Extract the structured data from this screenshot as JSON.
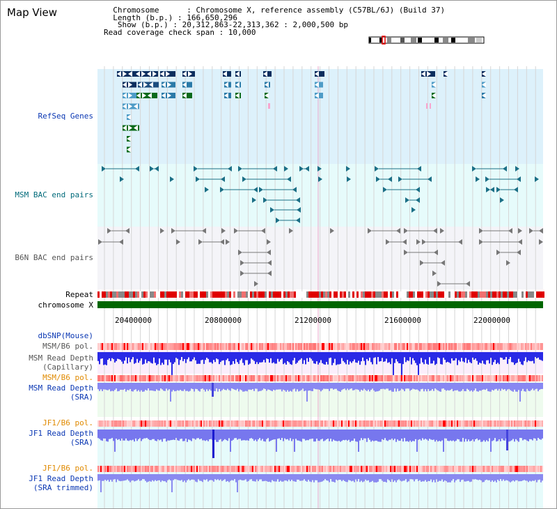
{
  "header": {
    "title": "Map View",
    "info_lines": [
      "  Chromosome      : Chromosome X, reference assembly (C57BL/6J) (Build 37)",
      "  Length (b.p.) : 166,650,296",
      "   Show (b.p.) : 20,312,863-22,313,362 : 2,000,500 bp",
      "Read coverage check span : 10,000"
    ]
  },
  "tracks": {
    "refseq": "RefSeq Genes",
    "msm_bac": "MSM BAC end pairs",
    "b6n_bac": "B6N BAC end pairs",
    "repeat": "Repeat",
    "chromosome": "chromosome X",
    "dbsnp": "dbSNP(Mouse)",
    "msm_pol1": "MSM/B6 pol.",
    "msm_depth_cap_1": "MSM Read Depth",
    "msm_depth_cap_2": "(Capillary)",
    "msm_pol2": "MSM/B6 pol.",
    "msm_depth_sra_1": "MSM Read Depth",
    "msm_depth_sra_2": "(SRA)",
    "jf1_pol1": "JF1/B6 pol.",
    "jf1_depth_sra_1": "JF1 Read Depth",
    "jf1_depth_sra_2": "(SRA)",
    "jf1_pol2": "JF1/B6 pol.",
    "jf1_depth_trim_1": "JF1 Read Depth",
    "jf1_depth_trim_2": "(SRA trimmed)"
  },
  "axis": {
    "ticks": [
      "20400000",
      "20800000",
      "21200000",
      "21600000",
      "22000000"
    ]
  },
  "colors": {
    "refseq_bg": "#ddf1fb",
    "bac_bg": "#e6fbfb",
    "b6n_bg": "#f4f4f8",
    "msm_bg": "#fbeefb",
    "sra_bg": "#eefbee",
    "jf1_bg": "#e6fbfb",
    "chrom_green": "#006600",
    "label_blue": "#0a37b3",
    "label_orange": "#e08a00",
    "label_teal": "#006a7a"
  }
}
